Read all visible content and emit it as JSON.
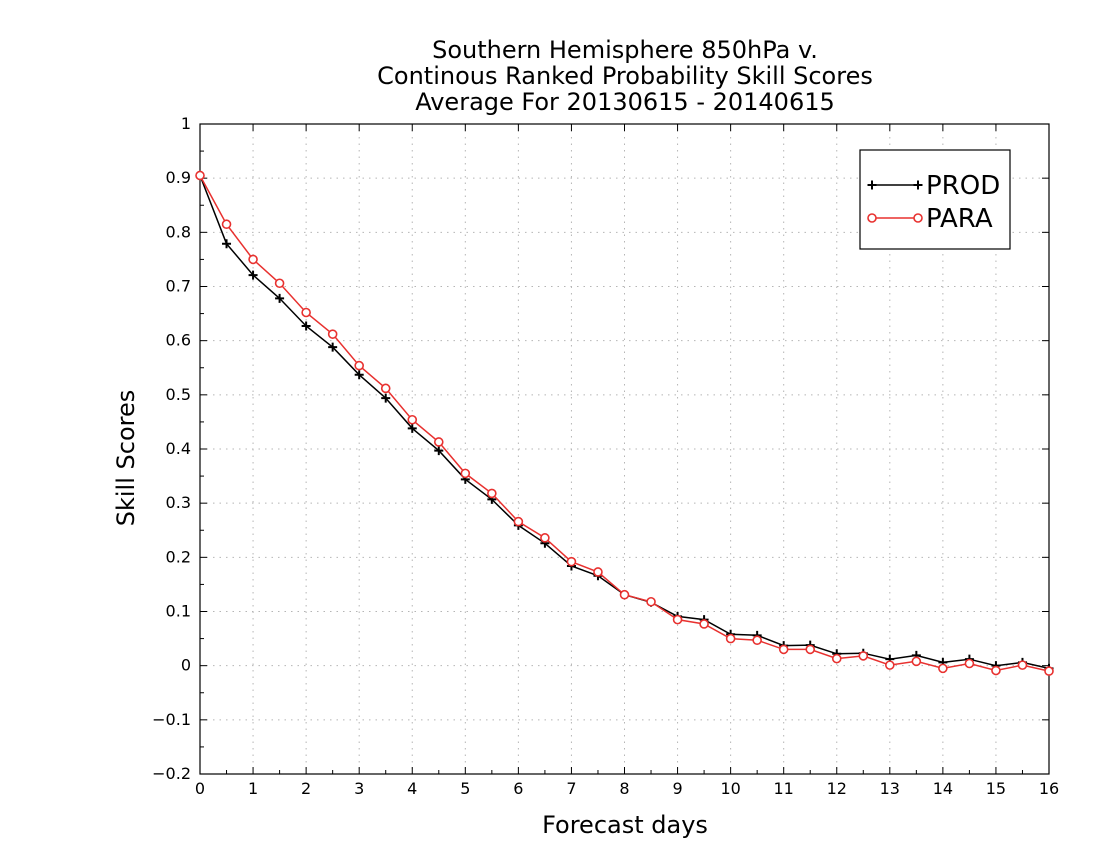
{
  "chart_data": {
    "type": "line",
    "title_lines": [
      "Southern Hemisphere 850hPa v.",
      "Continous Ranked Probability Skill Scores",
      "Average For 20130615 - 20140615"
    ],
    "xlabel": "Forecast days",
    "ylabel": "Skill Scores",
    "xlim": [
      0,
      16
    ],
    "ylim": [
      -0.2,
      1
    ],
    "x_ticks": [
      "0",
      "1",
      "2",
      "3",
      "4",
      "5",
      "6",
      "7",
      "8",
      "9",
      "10",
      "11",
      "12",
      "13",
      "14",
      "15",
      "16"
    ],
    "y_ticks": [
      "-0.2",
      "-0.1",
      "0",
      "0.1",
      "0.2",
      "0.3",
      "0.4",
      "0.5",
      "0.6",
      "0.7",
      "0.8",
      "0.9",
      "1"
    ],
    "grid": true,
    "legend_position": "top-right",
    "x": [
      0,
      0.5,
      1,
      1.5,
      2,
      2.5,
      3,
      3.5,
      4,
      4.5,
      5,
      5.5,
      6,
      6.5,
      7,
      7.5,
      8,
      8.5,
      9,
      9.5,
      10,
      10.5,
      11,
      11.5,
      12,
      12.5,
      13,
      13.5,
      14,
      14.5,
      15,
      15.5,
      16
    ],
    "series": [
      {
        "name": "PROD",
        "color": "#000000",
        "marker": "plus",
        "values": [
          0.905,
          0.779,
          0.721,
          0.678,
          0.627,
          0.588,
          0.537,
          0.494,
          0.438,
          0.397,
          0.344,
          0.307,
          0.259,
          0.226,
          0.184,
          0.166,
          0.131,
          0.117,
          0.091,
          0.085,
          0.058,
          0.056,
          0.037,
          0.038,
          0.022,
          0.023,
          0.012,
          0.019,
          0.006,
          0.012,
          0.0,
          0.006,
          -0.005
        ]
      },
      {
        "name": "PARA",
        "color": "#e8312f",
        "marker": "circle",
        "values": [
          0.905,
          0.815,
          0.75,
          0.706,
          0.652,
          0.612,
          0.554,
          0.512,
          0.454,
          0.413,
          0.355,
          0.318,
          0.266,
          0.236,
          0.192,
          0.173,
          0.131,
          0.118,
          0.085,
          0.077,
          0.05,
          0.047,
          0.03,
          0.03,
          0.013,
          0.018,
          0.001,
          0.008,
          -0.005,
          0.004,
          -0.009,
          0.001,
          -0.01
        ]
      }
    ]
  }
}
